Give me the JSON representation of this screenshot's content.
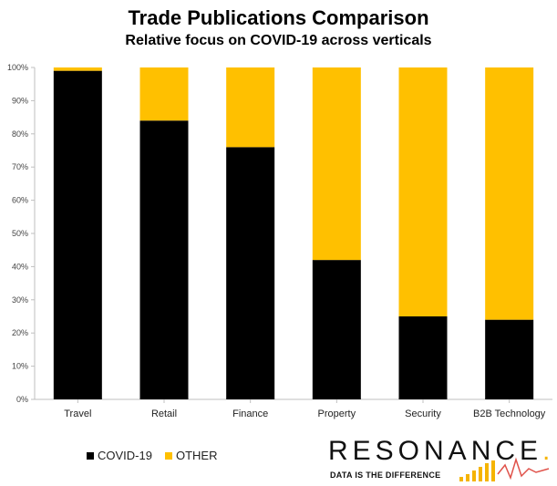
{
  "chart_data": {
    "type": "bar",
    "stacked": true,
    "title": "Trade Publications Comparison",
    "subtitle": "Relative focus on COVID-19 across verticals",
    "categories": [
      "Travel",
      "Retail",
      "Finance",
      "Property",
      "Security",
      "B2B Technology"
    ],
    "series": [
      {
        "name": "COVID-19",
        "color": "#000000",
        "values": [
          99,
          84,
          76,
          42,
          25,
          24
        ]
      },
      {
        "name": "OTHER",
        "color": "#FFC000",
        "values": [
          1,
          16,
          24,
          58,
          75,
          76
        ]
      }
    ],
    "ylim": [
      0,
      100
    ],
    "yticks": [
      "0%",
      "10%",
      "20%",
      "30%",
      "40%",
      "50%",
      "60%",
      "70%",
      "80%",
      "90%",
      "100%"
    ],
    "grid": false,
    "legend_position": "bottom-left"
  },
  "logo": {
    "word": "RESONANCE",
    "dot": ".",
    "tagline": "DATA IS THE DIFFERENCE",
    "accent_color": "#F5B400",
    "line_color": "#E0524A"
  }
}
